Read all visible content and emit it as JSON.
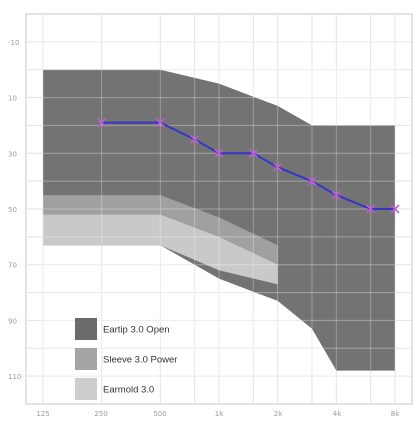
{
  "chart_data": {
    "type": "area",
    "title": "",
    "xlabel": "",
    "ylabel": "",
    "x_tick_labels": [
      "125",
      "250",
      "500",
      "1k",
      "2k",
      "4k",
      "8k"
    ],
    "y_tick_labels": [
      "-10",
      "10",
      "30",
      "50",
      "70",
      "90",
      "110"
    ],
    "y_values": [
      -10,
      10,
      30,
      50,
      70,
      90,
      110
    ],
    "ylim": [
      -20,
      120
    ],
    "y_inverted": true,
    "grid": true,
    "legend_position": "bottom-left",
    "bands": [
      {
        "label": "Eartip 3.0 Open",
        "color": "#6b6b6b",
        "upper": [
          [
            125,
            0
          ],
          [
            500,
            0
          ],
          [
            1000,
            5
          ],
          [
            2000,
            13
          ],
          [
            3000,
            20
          ],
          [
            8000,
            20
          ]
        ],
        "lower": [
          [
            125,
            63
          ],
          [
            250,
            63
          ],
          [
            500,
            63
          ],
          [
            1000,
            75
          ],
          [
            2000,
            83
          ],
          [
            3000,
            93
          ],
          [
            4000,
            108
          ],
          [
            8000,
            108
          ]
        ]
      },
      {
        "label": "Sleeve 3.0 Power",
        "color": "#a5a5a5",
        "upper": [
          [
            125,
            45
          ],
          [
            500,
            45
          ],
          [
            1000,
            53
          ],
          [
            2000,
            63
          ]
        ],
        "lower": [
          [
            125,
            63
          ],
          [
            500,
            63
          ],
          [
            1000,
            72
          ],
          [
            2000,
            77
          ]
        ]
      },
      {
        "label": "Earmold 3.0",
        "color": "#cdcdcd",
        "upper": [
          [
            125,
            52
          ],
          [
            500,
            52
          ],
          [
            1000,
            60
          ],
          [
            2000,
            70
          ]
        ],
        "lower": [
          [
            125,
            63
          ],
          [
            500,
            63
          ],
          [
            1000,
            72
          ],
          [
            2000,
            77
          ]
        ]
      }
    ],
    "series": [
      {
        "color": "#3535c8",
        "marker_color": "#c45bd6",
        "points": [
          [
            250,
            19
          ],
          [
            500,
            19
          ],
          [
            750,
            25
          ],
          [
            1000,
            30
          ],
          [
            1500,
            30
          ],
          [
            2000,
            35
          ],
          [
            3000,
            40
          ],
          [
            4000,
            45
          ],
          [
            6000,
            50
          ],
          [
            8000,
            50
          ]
        ]
      }
    ]
  }
}
